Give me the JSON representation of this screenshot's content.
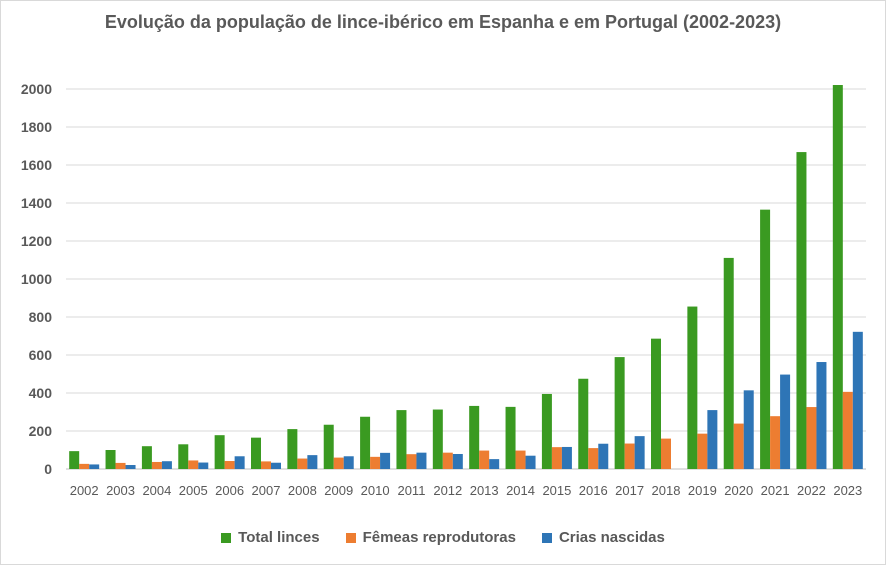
{
  "chart_data": {
    "type": "bar",
    "title": "Evolução da população de lince-ibérico em Espanha e em Portugal (2002-2023)",
    "xlabel": "",
    "ylabel": "",
    "ylim": [
      0,
      2000
    ],
    "yticks": [
      0,
      200,
      400,
      600,
      800,
      1000,
      1200,
      1400,
      1600,
      1800,
      2000
    ],
    "grid": true,
    "legend_position": "bottom",
    "categories": [
      "2002",
      "2003",
      "2004",
      "2005",
      "2006",
      "2007",
      "2008",
      "2009",
      "2010",
      "2011",
      "2012",
      "2013",
      "2014",
      "2015",
      "2016",
      "2017",
      "2018",
      "2019",
      "2020",
      "2021",
      "2022",
      "2023"
    ],
    "series": [
      {
        "name": "Total linces",
        "color": "#3a9a21",
        "values": [
          94,
          100,
          120,
          130,
          178,
          165,
          210,
          233,
          275,
          310,
          313,
          332,
          327,
          395,
          475,
          589,
          686,
          855,
          1111,
          1365,
          1668,
          2021
        ]
      },
      {
        "name": "Fêmeas reprodutoras",
        "color": "#ed7d31",
        "values": [
          27,
          32,
          37,
          45,
          42,
          40,
          55,
          60,
          64,
          78,
          86,
          97,
          97,
          115,
          110,
          134,
          160,
          186,
          239,
          278,
          326,
          406
        ]
      },
      {
        "name": "Crias nascidas",
        "color": "#2e75b6",
        "values": [
          24,
          21,
          41,
          34,
          67,
          33,
          73,
          67,
          85,
          86,
          79,
          52,
          70,
          116,
          133,
          173,
          null,
          310,
          414,
          497,
          563,
          722
        ]
      }
    ]
  }
}
